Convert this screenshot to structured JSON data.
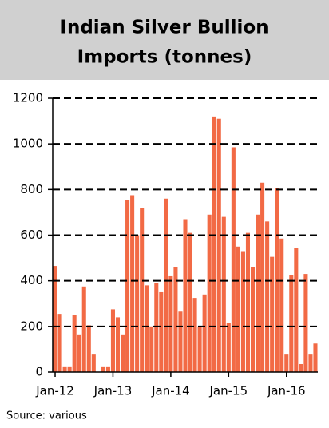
{
  "chart_data": {
    "type": "bar",
    "title": [
      "Indian Silver Bullion",
      "Imports (tonnes)"
    ],
    "source": "Source: various",
    "categories": [
      "Jan-12",
      null,
      null,
      null,
      null,
      null,
      null,
      null,
      null,
      null,
      null,
      null,
      "Jan-13",
      null,
      null,
      null,
      null,
      null,
      null,
      null,
      null,
      null,
      null,
      null,
      "Jan-14",
      null,
      null,
      null,
      null,
      null,
      null,
      null,
      null,
      null,
      null,
      null,
      "Jan-15",
      null,
      null,
      null,
      null,
      null,
      null,
      null,
      null,
      null,
      null,
      null,
      "Jan-16",
      null,
      null,
      null,
      null,
      null,
      null
    ],
    "values": [
      465,
      255,
      25,
      25,
      250,
      165,
      375,
      205,
      80,
      0,
      25,
      25,
      275,
      240,
      165,
      755,
      775,
      600,
      720,
      380,
      200,
      390,
      350,
      760,
      420,
      460,
      265,
      670,
      610,
      325,
      200,
      340,
      690,
      1120,
      1110,
      680,
      215,
      985,
      550,
      530,
      610,
      460,
      690,
      830,
      660,
      505,
      805,
      585,
      80,
      425,
      545,
      35,
      430,
      80,
      125
    ],
    "color": "#f26a45",
    "ylim": [
      0,
      1200
    ],
    "yticks": [
      0,
      200,
      400,
      600,
      800,
      1000,
      1200
    ],
    "grid": true
  }
}
